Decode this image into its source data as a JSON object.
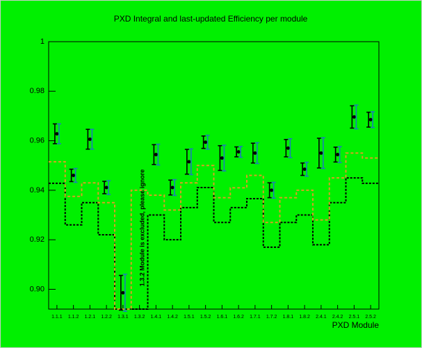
{
  "chart_data": {
    "type": "errorbar",
    "title": "PXD Integral and last-updated Efficiency per module",
    "x_label": "PXD Module",
    "annotation": "1.3.2 Module is excluded, please ignore",
    "categories": [
      "1.1.1",
      "1.1.2",
      "1.2.1",
      "1.2.2",
      "1.3.1",
      "1.3.2",
      "1.4.1",
      "1.4.2",
      "1.5.1",
      "1.5.2",
      "1.6.1",
      "1.6.2",
      "1.7.1",
      "1.7.2",
      "1.8.1",
      "1.8.2",
      "2.4.1",
      "2.4.2",
      "2.5.1",
      "2.5.2"
    ],
    "series": [
      {
        "color": "#000000",
        "offset": -1,
        "values": [
          0.9628,
          0.946,
          0.9606,
          0.9411,
          0.8986,
          null,
          0.9544,
          0.9411,
          0.9515,
          0.9594,
          0.953,
          0.9555,
          0.955,
          0.94,
          0.957,
          0.9485,
          0.955,
          0.9544,
          0.9696,
          0.9685
        ],
        "errors": [
          0.004,
          0.0025,
          0.004,
          0.0025,
          0.007,
          null,
          0.004,
          0.003,
          0.005,
          0.0025,
          0.005,
          0.002,
          0.004,
          0.003,
          0.0035,
          0.0025,
          0.006,
          0.003,
          0.0045,
          0.003
        ]
      },
      {
        "color": "#1a7fb8",
        "offset": 1,
        "values": [
          0.9628,
          0.946,
          0.9606,
          0.9411,
          0.8986,
          null,
          0.9544,
          0.9411,
          0.9515,
          0.9594,
          0.953,
          0.9555,
          0.955,
          0.94,
          0.957,
          0.9485,
          0.955,
          0.9544,
          0.9696,
          0.9685
        ],
        "errors": [
          0.004,
          0.0028,
          0.004,
          0.0028,
          0.0075,
          null,
          0.0042,
          0.0032,
          0.0052,
          0.0028,
          0.0052,
          0.0022,
          0.0042,
          0.0032,
          0.0038,
          0.0028,
          0.0062,
          0.0032,
          0.0048,
          0.0032
        ]
      }
    ],
    "steps": [
      {
        "color": "#000000",
        "dash": "3,2",
        "values": [
          0.9428,
          0.926,
          0.935,
          0.922,
          0.892,
          0.892,
          0.93,
          0.92,
          0.933,
          0.9411,
          0.927,
          0.933,
          0.9366,
          0.917,
          0.927,
          0.93,
          0.918,
          0.935,
          0.945,
          0.9428
        ]
      },
      {
        "color": "#d8a020",
        "dash": "4,3",
        "values": [
          0.9515,
          0.9375,
          0.943,
          0.935,
          0.892,
          0.94,
          0.938,
          0.932,
          0.943,
          0.95,
          0.937,
          0.941,
          0.946,
          0.927,
          0.937,
          0.94,
          0.928,
          0.945,
          0.955,
          0.953
        ]
      }
    ],
    "ylim": [
      0.892,
      1
    ],
    "yticks": [
      {
        "value": 0.9,
        "label": "0.90"
      },
      0.92,
      0.94,
      0.96,
      0.98,
      1
    ],
    "background": "#00f000"
  }
}
